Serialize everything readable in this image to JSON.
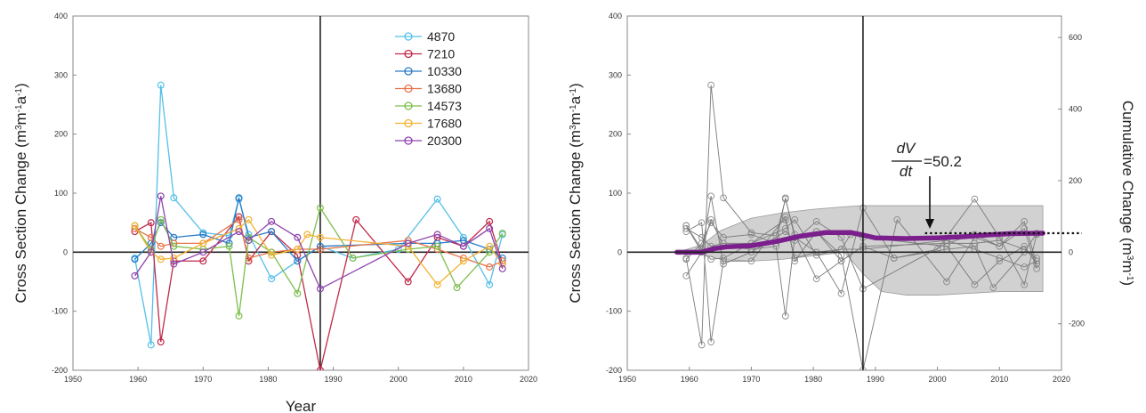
{
  "chart_data": [
    {
      "type": "line",
      "xlabel": "Year",
      "ylabel_parts": [
        "Cross Section Change (m",
        "3",
        "m",
        "-1",
        "a",
        "-1",
        ")"
      ],
      "xlim": [
        1950,
        2020
      ],
      "ylim": [
        -200,
        400
      ],
      "xticks": [
        "1950",
        "1960",
        "1970",
        "1980",
        "1990",
        "2000",
        "2010",
        "2020"
      ],
      "yticks": [
        "-200",
        "-100",
        "0",
        "100",
        "200",
        "300",
        "400"
      ],
      "reference_line_x": 1988,
      "legend_position": "top-right",
      "series": [
        {
          "name": "4870",
          "color": "#55C0E8",
          "points": [
            [
              1959.5,
              -10
            ],
            [
              1962,
              -157
            ],
            [
              1963.5,
              283
            ],
            [
              1965.5,
              92
            ],
            [
              1970,
              33
            ],
            [
              1974,
              28
            ],
            [
              1975.5,
              90
            ],
            [
              1977,
              30
            ],
            [
              1980.5,
              -45
            ],
            [
              1984.5,
              -15
            ],
            [
              1988,
              10
            ],
            [
              1993,
              -10
            ],
            [
              2000,
              5
            ],
            [
              2006,
              90
            ],
            [
              2010,
              25
            ],
            [
              2014,
              -55
            ],
            [
              2016,
              30
            ]
          ]
        },
        {
          "name": "7210",
          "color": "#C0294A",
          "points": [
            [
              1959.5,
              35
            ],
            [
              1962,
              50
            ],
            [
              1963.5,
              -152
            ],
            [
              1965.5,
              -15
            ],
            [
              1970,
              -15
            ],
            [
              1975.5,
              60
            ],
            [
              1977,
              -15
            ],
            [
              1980.5,
              35
            ],
            [
              1984.5,
              -5
            ],
            [
              1988,
              -200
            ],
            [
              1993.5,
              55
            ],
            [
              2001.5,
              -50
            ],
            [
              2006,
              25
            ],
            [
              2010,
              10
            ],
            [
              2014,
              52
            ],
            [
              2016,
              -20
            ]
          ]
        },
        {
          "name": "10330",
          "color": "#2A7BC8",
          "points": [
            [
              1959.5,
              -12
            ],
            [
              1962,
              15
            ],
            [
              1963.5,
              50
            ],
            [
              1965.5,
              25
            ],
            [
              1970,
              30
            ],
            [
              1974,
              15
            ],
            [
              1975.5,
              92
            ],
            [
              1977,
              25
            ],
            [
              1980.5,
              35
            ],
            [
              1984.5,
              -15
            ],
            [
              1988,
              10
            ],
            [
              2001.5,
              15
            ],
            [
              2006,
              15
            ],
            [
              2010,
              20
            ],
            [
              2014,
              5
            ],
            [
              2016,
              -10
            ]
          ]
        },
        {
          "name": "13680",
          "color": "#E8744A",
          "points": [
            [
              1959.5,
              40
            ],
            [
              1962,
              25
            ],
            [
              1963.5,
              10
            ],
            [
              1965.5,
              15
            ],
            [
              1970,
              15
            ],
            [
              1975.5,
              55
            ],
            [
              1977,
              -10
            ],
            [
              1980.5,
              0
            ],
            [
              1984.5,
              5
            ],
            [
              1988,
              5
            ],
            [
              2001.5,
              20
            ],
            [
              2006,
              5
            ],
            [
              2010,
              -10
            ],
            [
              2014,
              -25
            ],
            [
              2016,
              -15
            ]
          ]
        },
        {
          "name": "14573",
          "color": "#7CBF4A",
          "points": [
            [
              1959.5,
              45
            ],
            [
              1962,
              5
            ],
            [
              1963.5,
              55
            ],
            [
              1965.5,
              10
            ],
            [
              1970,
              5
            ],
            [
              1974,
              10
            ],
            [
              1975.5,
              -108
            ],
            [
              1977,
              25
            ],
            [
              1980.5,
              0
            ],
            [
              1984.5,
              -70
            ],
            [
              1988,
              75
            ],
            [
              1993,
              -10
            ],
            [
              2001.5,
              5
            ],
            [
              2006,
              10
            ],
            [
              2009,
              -60
            ],
            [
              2014,
              0
            ],
            [
              2016,
              32
            ]
          ]
        },
        {
          "name": "17680",
          "color": "#F2B233",
          "points": [
            [
              1959.5,
              45
            ],
            [
              1962,
              0
            ],
            [
              1963.5,
              -12
            ],
            [
              1965.5,
              -10
            ],
            [
              1970,
              15
            ],
            [
              1975.5,
              40
            ],
            [
              1977,
              55
            ],
            [
              1980.5,
              -5
            ],
            [
              1984.5,
              5
            ],
            [
              1986,
              30
            ],
            [
              1988,
              25
            ],
            [
              2001.5,
              10
            ],
            [
              2006,
              -55
            ],
            [
              2010,
              -15
            ],
            [
              2014,
              10
            ],
            [
              2016,
              -20
            ]
          ]
        },
        {
          "name": "20300",
          "color": "#8E44AD",
          "points": [
            [
              1959.5,
              -40
            ],
            [
              1962,
              0
            ],
            [
              1963.5,
              95
            ],
            [
              1965.5,
              -20
            ],
            [
              1970,
              0
            ],
            [
              1975.5,
              35
            ],
            [
              1977,
              20
            ],
            [
              1980.5,
              52
            ],
            [
              1984.5,
              25
            ],
            [
              1988,
              -62
            ],
            [
              2001.5,
              15
            ],
            [
              2006,
              30
            ],
            [
              2010,
              10
            ],
            [
              2014,
              40
            ],
            [
              2016,
              -28
            ]
          ]
        }
      ]
    },
    {
      "type": "line",
      "ylabel_parts": [
        "Cross Section Change (m",
        "3",
        "m",
        "-1",
        "a",
        "-1",
        ")"
      ],
      "y2label_parts": [
        "Cumulative Change (m",
        "3",
        "m",
        "-1",
        ")"
      ],
      "xlim": [
        1950,
        2020
      ],
      "ylim": [
        -200,
        400
      ],
      "y2lim": [
        -330,
        660
      ],
      "xticks": [
        "1950",
        "1960",
        "1970",
        "1980",
        "1990",
        "2000",
        "2010",
        "2020"
      ],
      "yticks": [
        "-200",
        "-100",
        "0",
        "100",
        "200",
        "300",
        "400"
      ],
      "y2ticks": [
        "-200",
        "0",
        "200",
        "400",
        "600"
      ],
      "reference_line_x": 1988,
      "annotation": {
        "label": "dV/dt",
        "value": "=50.2",
        "numerator": "dV",
        "denominator": "dt"
      },
      "cumulative_mean": {
        "color": "#7A1F8C",
        "points": [
          [
            1958,
            0
          ],
          [
            1962,
            0
          ],
          [
            1964,
            10
          ],
          [
            1966,
            15
          ],
          [
            1970,
            18
          ],
          [
            1974,
            30
          ],
          [
            1978,
            45
          ],
          [
            1982,
            55
          ],
          [
            1986,
            55
          ],
          [
            1988,
            48
          ],
          [
            1990,
            40
          ],
          [
            1995,
            38
          ],
          [
            2000,
            40
          ],
          [
            2004,
            43
          ],
          [
            2008,
            48
          ],
          [
            2012,
            52
          ],
          [
            2017,
            53
          ]
        ]
      },
      "trend_line": {
        "x_from": 1998,
        "x_to": 2020,
        "y2": 53
      },
      "envelope_upper": [
        [
          1958,
          0
        ],
        [
          1962,
          20
        ],
        [
          1965,
          60
        ],
        [
          1970,
          95
        ],
        [
          1975,
          110
        ],
        [
          1980,
          120
        ],
        [
          1985,
          127
        ],
        [
          1988,
          130
        ],
        [
          1995,
          130
        ],
        [
          2005,
          130
        ],
        [
          2017,
          130
        ]
      ],
      "envelope_lower": [
        [
          1958,
          0
        ],
        [
          1962,
          -5
        ],
        [
          1965,
          -20
        ],
        [
          1970,
          -25
        ],
        [
          1975,
          -20
        ],
        [
          1980,
          -10
        ],
        [
          1985,
          0
        ],
        [
          1988,
          -60
        ],
        [
          1991,
          -110
        ],
        [
          1995,
          -120
        ],
        [
          2000,
          -120
        ],
        [
          2005,
          -115
        ],
        [
          2010,
          -110
        ],
        [
          2017,
          -110
        ]
      ]
    }
  ]
}
